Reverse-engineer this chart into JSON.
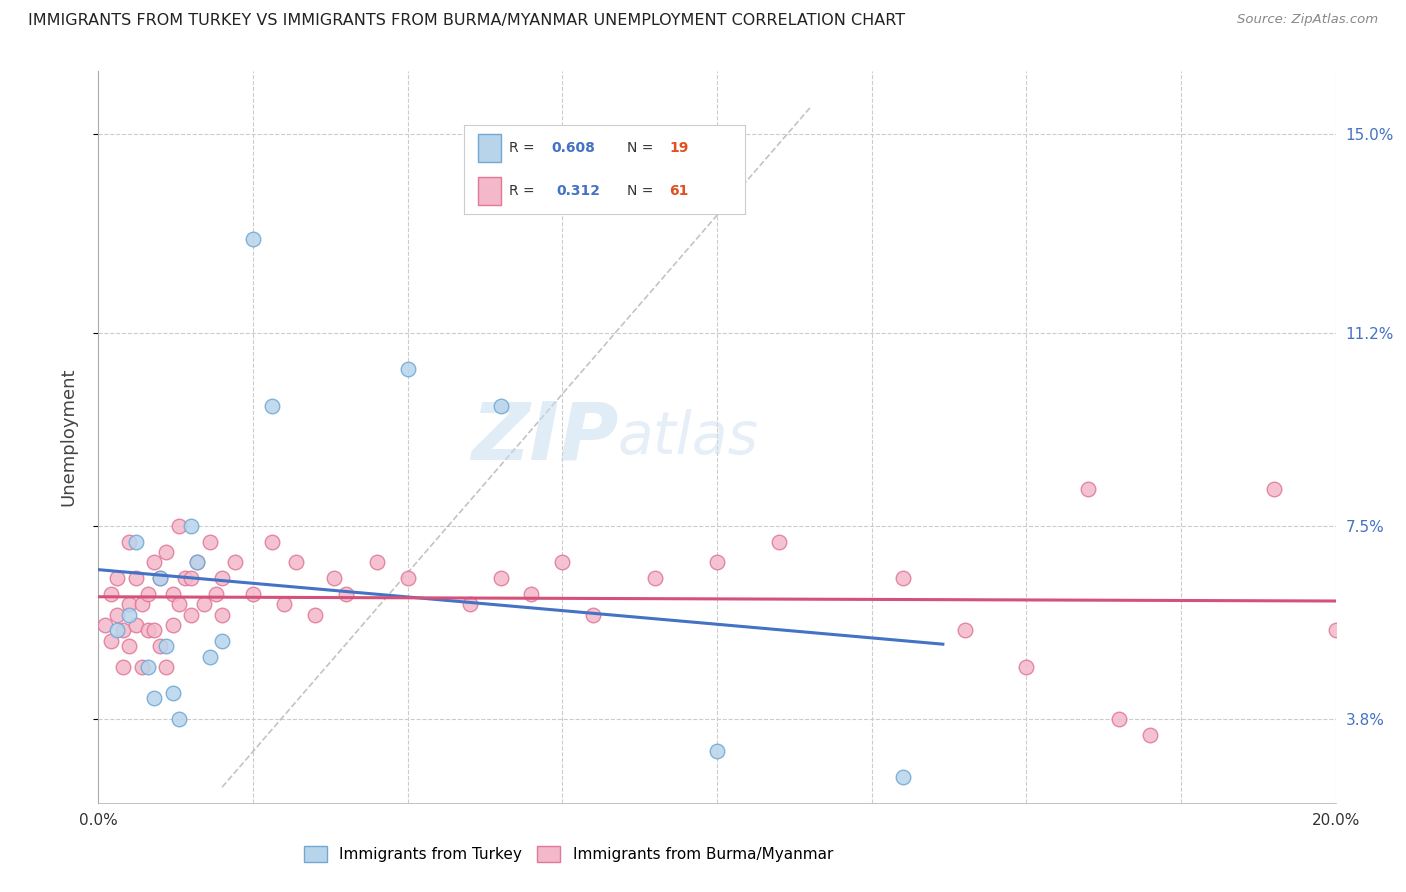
{
  "title": "IMMIGRANTS FROM TURKEY VS IMMIGRANTS FROM BURMA/MYANMAR UNEMPLOYMENT CORRELATION CHART",
  "source": "Source: ZipAtlas.com",
  "ylabel": "Unemployment",
  "ytick_vals": [
    0.038,
    0.075,
    0.112,
    0.15
  ],
  "ytick_labels": [
    "3.8%",
    "7.5%",
    "11.2%",
    "15.0%"
  ],
  "xlim": [
    0.0,
    0.2
  ],
  "ylim": [
    0.022,
    0.162
  ],
  "legend_r_turkey": "0.608",
  "legend_n_turkey": "19",
  "legend_r_burma": "0.312",
  "legend_n_burma": "61",
  "color_turkey_fill": "#b8d4eb",
  "color_turkey_edge": "#6fa8d4",
  "color_burma_fill": "#f4b8cb",
  "color_burma_edge": "#e07898",
  "color_turkey_line": "#4472c4",
  "color_burma_line": "#d4527a",
  "watermark_zip": "ZIP",
  "watermark_atlas": "atlas",
  "turkey_x": [
    0.003,
    0.005,
    0.006,
    0.008,
    0.009,
    0.01,
    0.011,
    0.012,
    0.013,
    0.015,
    0.016,
    0.018,
    0.02,
    0.025,
    0.028,
    0.05,
    0.065,
    0.1,
    0.13
  ],
  "turkey_y": [
    0.055,
    0.058,
    0.072,
    0.048,
    0.042,
    0.065,
    0.052,
    0.043,
    0.038,
    0.075,
    0.068,
    0.05,
    0.053,
    0.13,
    0.098,
    0.105,
    0.098,
    0.032,
    0.027
  ],
  "burma_x": [
    0.001,
    0.002,
    0.002,
    0.003,
    0.003,
    0.004,
    0.004,
    0.005,
    0.005,
    0.005,
    0.006,
    0.006,
    0.007,
    0.007,
    0.008,
    0.008,
    0.009,
    0.009,
    0.01,
    0.01,
    0.011,
    0.011,
    0.012,
    0.012,
    0.013,
    0.013,
    0.014,
    0.015,
    0.015,
    0.016,
    0.017,
    0.018,
    0.019,
    0.02,
    0.02,
    0.022,
    0.025,
    0.028,
    0.03,
    0.032,
    0.035,
    0.038,
    0.04,
    0.045,
    0.05,
    0.06,
    0.065,
    0.07,
    0.075,
    0.08,
    0.09,
    0.1,
    0.11,
    0.13,
    0.14,
    0.15,
    0.16,
    0.165,
    0.17,
    0.19,
    0.2
  ],
  "burma_y": [
    0.056,
    0.062,
    0.053,
    0.058,
    0.065,
    0.048,
    0.055,
    0.06,
    0.052,
    0.072,
    0.056,
    0.065,
    0.048,
    0.06,
    0.062,
    0.055,
    0.055,
    0.068,
    0.052,
    0.065,
    0.07,
    0.048,
    0.062,
    0.056,
    0.075,
    0.06,
    0.065,
    0.058,
    0.065,
    0.068,
    0.06,
    0.072,
    0.062,
    0.065,
    0.058,
    0.068,
    0.062,
    0.072,
    0.06,
    0.068,
    0.058,
    0.065,
    0.062,
    0.068,
    0.065,
    0.06,
    0.065,
    0.062,
    0.068,
    0.058,
    0.065,
    0.068,
    0.072,
    0.065,
    0.055,
    0.048,
    0.082,
    0.038,
    0.035,
    0.082,
    0.055
  ],
  "marker_size": 110
}
